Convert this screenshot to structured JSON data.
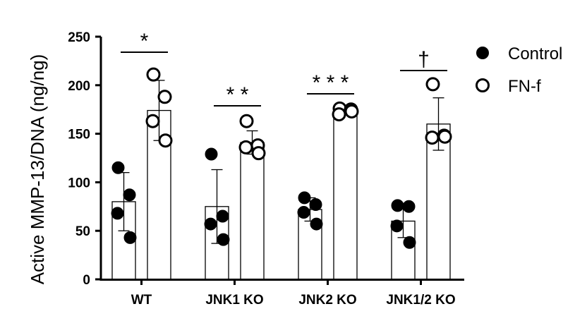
{
  "chart_data": {
    "type": "bar",
    "ylabel": "Active MMP-13/DNA  (ng/ng)",
    "xlabel": "",
    "ylim": [
      0,
      250
    ],
    "yticks": [
      0,
      50,
      100,
      150,
      200,
      250
    ],
    "categories": [
      "WT",
      "JNK1 KO",
      "JNK2 KO",
      "JNK1/2 KO"
    ],
    "series": [
      {
        "name": "Control",
        "marker": "filled-circle",
        "values": [
          80,
          75,
          72,
          60
        ],
        "error": [
          30,
          38,
          12,
          17
        ],
        "points": [
          [
            115,
            87,
            68,
            43
          ],
          [
            129,
            65,
            57,
            41
          ],
          [
            84,
            77,
            69,
            57
          ],
          [
            76,
            75,
            55,
            38
          ]
        ]
      },
      {
        "name": "FN-f",
        "marker": "open-circle",
        "values": [
          174,
          141,
          174,
          160
        ],
        "error": [
          31,
          12,
          4,
          27
        ],
        "points": [
          [
            211,
            188,
            163,
            143
          ],
          [
            163,
            138,
            136,
            130
          ],
          [
            176,
            175,
            170,
            173
          ],
          [
            201,
            148,
            146,
            147
          ]
        ]
      }
    ],
    "significance": [
      "*",
      "* *",
      "* * *",
      "†"
    ],
    "legend_position": "top-right",
    "grid": false
  }
}
